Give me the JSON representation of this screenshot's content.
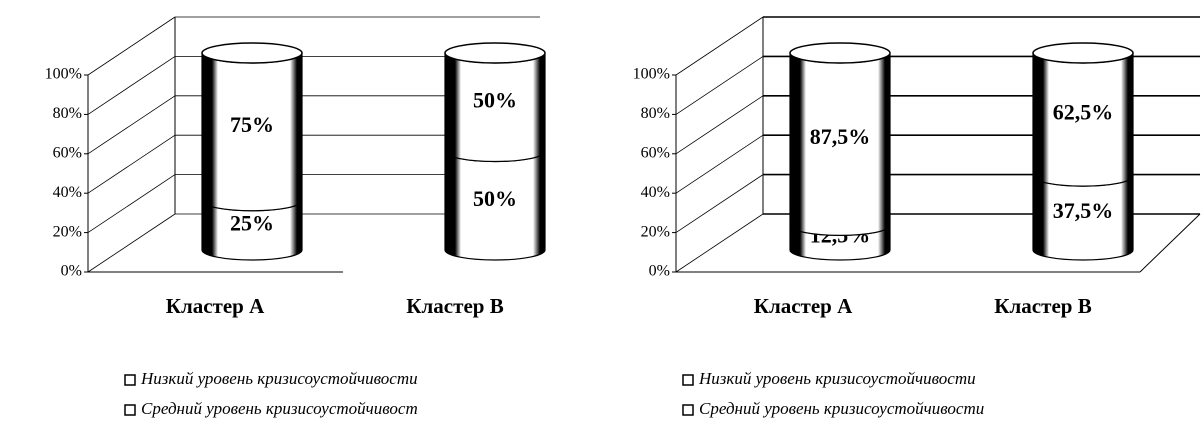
{
  "chart_data": [
    {
      "type": "cylinder-stacked",
      "categories": [
        "Кластер А",
        "Кластер В"
      ],
      "series": [
        {
          "name": "Низкий уровень кризисоустойчивости",
          "color": "#ffffff",
          "values": [
            25,
            50
          ],
          "value_labels": [
            "25%",
            "50%"
          ]
        },
        {
          "name": "Средний уровень кризисоустойчивост",
          "color": "#ffffff",
          "values": [
            75,
            50
          ],
          "value_labels": [
            "75%",
            "50%"
          ]
        }
      ],
      "ylim": [
        0,
        100
      ],
      "yticks": [
        {
          "value": 0,
          "label": "0%"
        },
        {
          "value": 20,
          "label": "20%"
        },
        {
          "value": 40,
          "label": "40%"
        },
        {
          "value": 60,
          "label": "60%"
        },
        {
          "value": 80,
          "label": "80%"
        },
        {
          "value": 100,
          "label": "100%"
        }
      ],
      "grid": true
    },
    {
      "type": "cylinder-stacked",
      "categories": [
        "Кластер А",
        "Кластер В"
      ],
      "series": [
        {
          "name": "Низкий уровень кризисоустойчивости",
          "color": "#ffffff",
          "values": [
            12.5,
            37.5
          ],
          "value_labels": [
            "12,5%",
            "37,5%"
          ]
        },
        {
          "name": "Средний уровень кризисоустойчивости",
          "color": "#ffffff",
          "values": [
            87.5,
            62.5
          ],
          "value_labels": [
            "87,5%",
            "62,5%"
          ]
        }
      ],
      "ylim": [
        0,
        100
      ],
      "yticks": [
        {
          "value": 0,
          "label": "0%"
        },
        {
          "value": 20,
          "label": "20%"
        },
        {
          "value": 40,
          "label": "40%"
        },
        {
          "value": 60,
          "label": "60%"
        },
        {
          "value": 80,
          "label": "80%"
        },
        {
          "value": 100,
          "label": "100%"
        }
      ],
      "grid": true
    }
  ]
}
